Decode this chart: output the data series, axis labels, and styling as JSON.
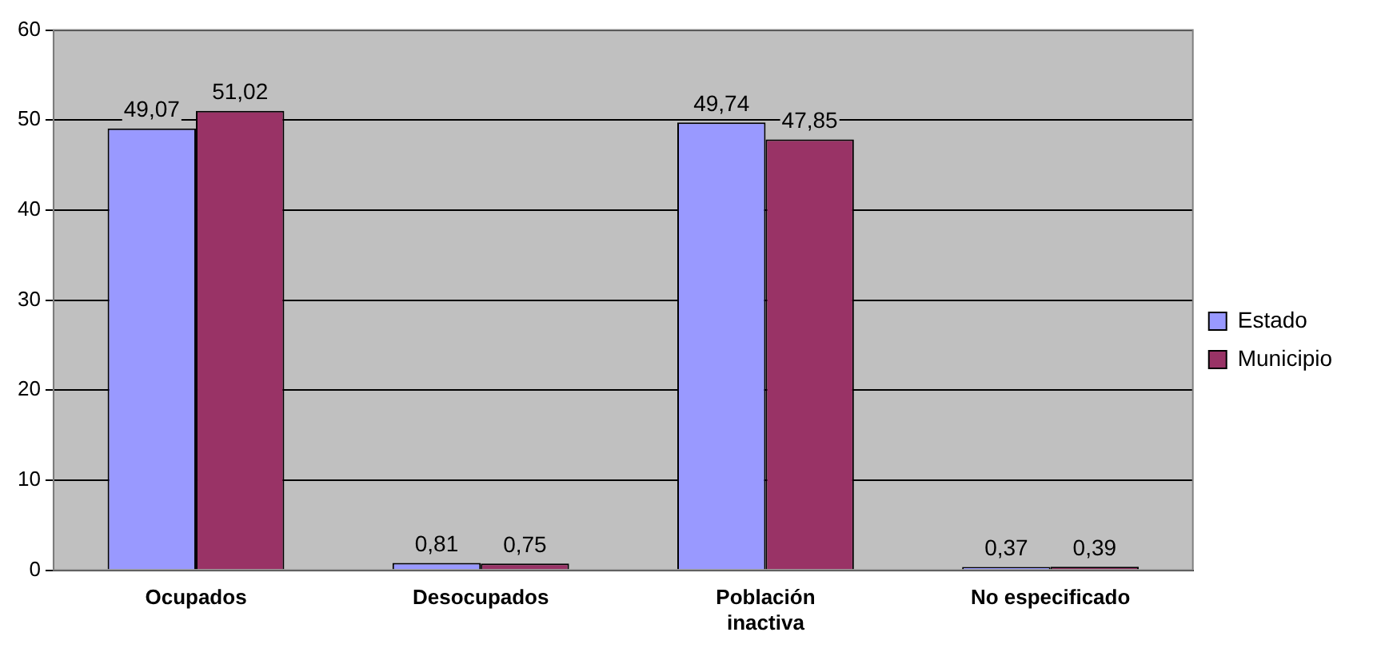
{
  "chart_data": {
    "type": "bar",
    "categories": [
      "Ocupados",
      "Desocupados",
      "Población inactiva",
      "No especificado"
    ],
    "series": [
      {
        "name": "Estado",
        "color": "#9999ff",
        "values": [
          49.07,
          0.81,
          49.74,
          0.37
        ],
        "value_labels": [
          "49,07",
          "0,81",
          "49,74",
          "0,37"
        ]
      },
      {
        "name": "Municipio",
        "color": "#993366",
        "values": [
          51.02,
          0.75,
          47.85,
          0.39
        ],
        "value_labels": [
          "51,02",
          "0,75",
          "47,85",
          "0,39"
        ]
      }
    ],
    "ylim": [
      0,
      60
    ],
    "yticks": [
      0,
      10,
      20,
      30,
      40,
      50,
      60
    ],
    "grid": "y",
    "legend": "right"
  }
}
